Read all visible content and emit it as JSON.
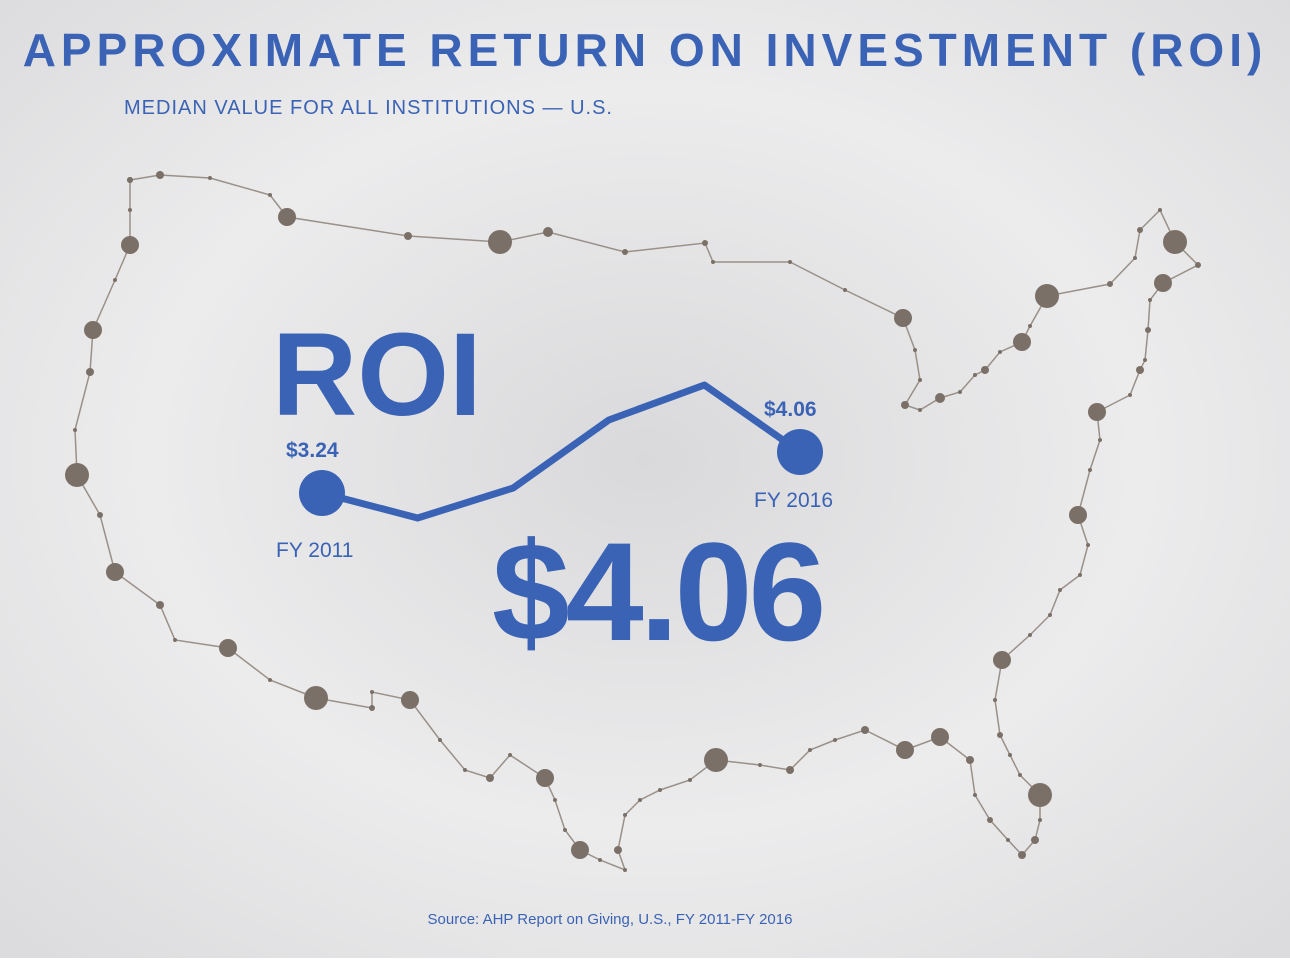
{
  "chart_data": {
    "type": "line",
    "title": "APPROXIMATE RETURN ON INVESTMENT (ROI)",
    "subtitle": "MEDIAN VALUE FOR ALL INSTITUTIONS — U.S.",
    "label": "ROI",
    "headline": "$4.06",
    "source": "Source: AHP Report on Giving, U.S., FY 2011-FY 2016",
    "categories": [
      "FY 2011",
      null,
      null,
      null,
      null,
      "FY 2016"
    ],
    "series": [
      {
        "color": "#3b63b5",
        "values": [
          3.24,
          2.74,
          3.34,
          4.7,
          5.4,
          4.06
        ],
        "value_labels": [
          "$3.24",
          null,
          null,
          null,
          null,
          "$4.06"
        ]
      }
    ]
  }
}
